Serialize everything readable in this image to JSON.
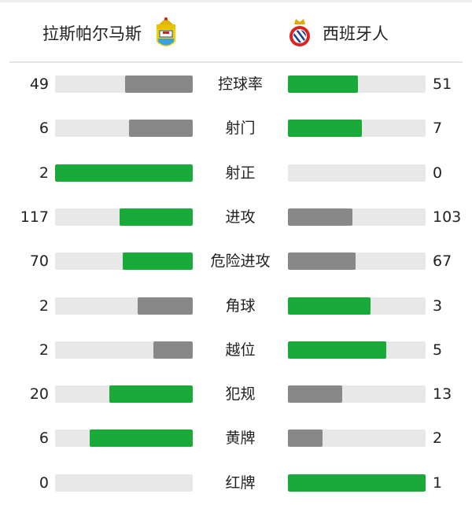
{
  "colors": {
    "leader": "#1aaa3a",
    "trailer": "#888888",
    "track": "#e8e8e8"
  },
  "home": {
    "name": "拉斯帕尔马斯",
    "logo": "las-palmas-crest"
  },
  "away": {
    "name": "西班牙人",
    "logo": "espanyol-crest"
  },
  "stats": [
    {
      "label": "控球率",
      "home": 49,
      "away": 51
    },
    {
      "label": "射门",
      "home": 6,
      "away": 7
    },
    {
      "label": "射正",
      "home": 2,
      "away": 0
    },
    {
      "label": "进攻",
      "home": 117,
      "away": 103
    },
    {
      "label": "危险进攻",
      "home": 70,
      "away": 67
    },
    {
      "label": "角球",
      "home": 2,
      "away": 3
    },
    {
      "label": "越位",
      "home": 2,
      "away": 5
    },
    {
      "label": "犯规",
      "home": 20,
      "away": 13
    },
    {
      "label": "黄牌",
      "home": 6,
      "away": 2
    },
    {
      "label": "红牌",
      "home": 0,
      "away": 1
    }
  ]
}
